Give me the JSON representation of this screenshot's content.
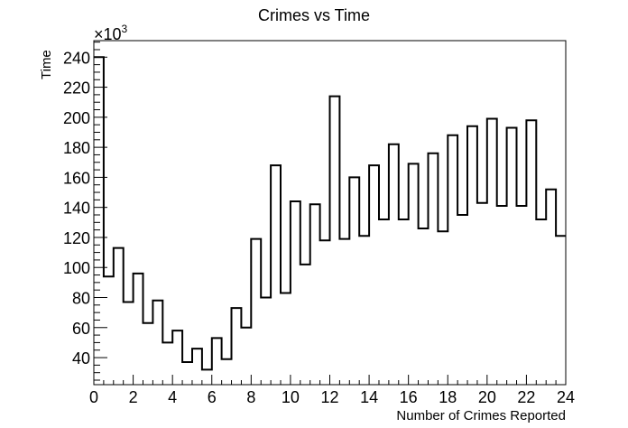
{
  "chart_data": {
    "type": "histogram",
    "title": "Crimes vs Time",
    "xlabel": "Number of Crimes Reported",
    "ylabel": "Time",
    "y_exponent_base": "×10",
    "y_exponent_power": "3",
    "xlim": [
      0,
      24
    ],
    "ylim": [
      22,
      251
    ],
    "x_ticks": [
      0,
      2,
      4,
      6,
      8,
      10,
      12,
      14,
      16,
      18,
      20,
      22,
      24
    ],
    "y_ticks": [
      40,
      60,
      80,
      100,
      120,
      140,
      160,
      180,
      200,
      220,
      240
    ],
    "bin_width": 0.5,
    "values": [
      240,
      94,
      113,
      77,
      96,
      63,
      78,
      50,
      58,
      37,
      46,
      32,
      53,
      39,
      73,
      60,
      119,
      80,
      168,
      83,
      144,
      102,
      142,
      118,
      214,
      119,
      160,
      121,
      168,
      132,
      182,
      132,
      169,
      126,
      176,
      124,
      188,
      135,
      194,
      143,
      199,
      141,
      193,
      141,
      198,
      132,
      152,
      121
    ],
    "line_color": "#000000",
    "grid": false,
    "legend": "none"
  }
}
